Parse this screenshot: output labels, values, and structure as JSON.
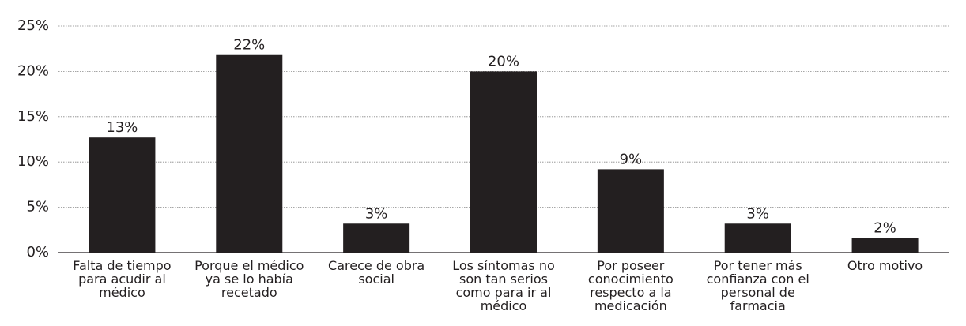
{
  "chart_data": {
    "type": "bar",
    "categories": [
      "Falta de tiempo para acudir al médico",
      "Porque el médico ya se lo había recetado",
      "Carece de obra social",
      "Los síntomas no son tan serios como para ir al médico",
      "Por poseer conocimiento respecto a la medicación",
      "Por tener más confianza con el personal de farmacia",
      "Otro motivo"
    ],
    "values": [
      12.7,
      21.8,
      3.2,
      20.0,
      9.2,
      3.2,
      1.6
    ],
    "value_labels": [
      "13%",
      "22%",
      "3%",
      "20%",
      "9%",
      "3%",
      "2%"
    ],
    "color": "#231f20",
    "ylim": [
      0,
      25
    ],
    "yticks": [
      {
        "value": 0,
        "label": "0%"
      },
      {
        "value": 5,
        "label": "5%"
      },
      {
        "value": 10,
        "label": "10%"
      },
      {
        "value": 15,
        "label": "15%"
      },
      {
        "value": 20,
        "label": "20%"
      },
      {
        "value": 25,
        "label": "25%"
      }
    ],
    "grid": true
  }
}
